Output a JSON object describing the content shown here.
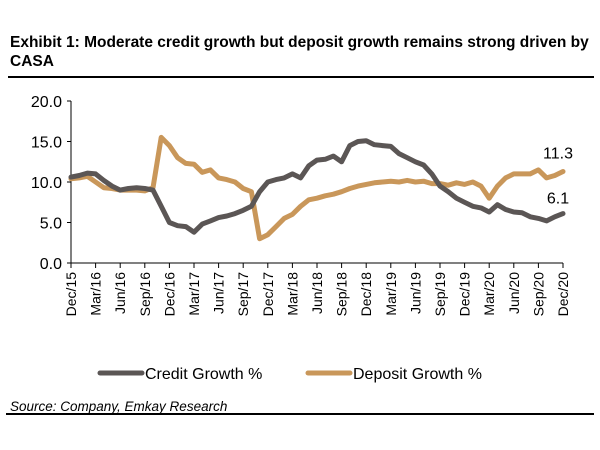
{
  "chart_data": {
    "type": "line",
    "title": "Exhibit 1: Moderate credit growth but deposit growth remains strong driven by CASA",
    "xlabel": "",
    "ylabel": "",
    "ylim": [
      0,
      20
    ],
    "yticks": [
      "0.0",
      "5.0",
      "10.0",
      "15.0",
      "20.0"
    ],
    "xtick_labels": [
      "Dec/15",
      "Mar/16",
      "Jun/16",
      "Sep/16",
      "Dec/16",
      "Mar/17",
      "Jun/17",
      "Sep/17",
      "Dec/17",
      "Mar/18",
      "Jun/18",
      "Sep/18",
      "Dec/18",
      "Mar/19",
      "Jun/19",
      "Sep/19",
      "Dec/19",
      "Mar/20",
      "Jun/20",
      "Sep/20",
      "Dec/20"
    ],
    "x_frequency": "monthly, Dec/15 to Dec/20",
    "grid": false,
    "legend_placement": "bottom",
    "series": [
      {
        "name": "Credit Growth %",
        "color": "#5b5655",
        "values": [
          10.6,
          10.8,
          11.1,
          11.0,
          10.2,
          9.5,
          9.0,
          9.2,
          9.3,
          9.2,
          9.0,
          7.0,
          5.0,
          4.6,
          4.5,
          3.8,
          4.8,
          5.2,
          5.6,
          5.8,
          6.1,
          6.5,
          7.0,
          8.8,
          10.0,
          10.3,
          10.5,
          11.0,
          10.5,
          12.0,
          12.7,
          12.8,
          13.2,
          12.5,
          14.5,
          15.0,
          15.1,
          14.6,
          14.5,
          14.4,
          13.5,
          13.0,
          12.5,
          12.1,
          11.0,
          9.5,
          8.8,
          8.0,
          7.5,
          7.0,
          6.8,
          6.3,
          7.2,
          6.6,
          6.3,
          6.2,
          5.7,
          5.5,
          5.2,
          5.7,
          6.1
        ],
        "end_label": "6.1"
      },
      {
        "name": "Deposit Growth %",
        "color": "#c9975a",
        "values": [
          10.4,
          10.5,
          10.7,
          10.0,
          9.3,
          9.2,
          9.0,
          9.0,
          9.0,
          8.9,
          9.3,
          15.5,
          14.5,
          13.0,
          12.3,
          12.2,
          11.2,
          11.5,
          10.5,
          10.3,
          10.0,
          9.2,
          8.8,
          3.0,
          3.5,
          4.5,
          5.5,
          6.0,
          7.0,
          7.8,
          8.0,
          8.3,
          8.5,
          8.8,
          9.2,
          9.5,
          9.7,
          9.9,
          10.0,
          10.1,
          10.0,
          10.2,
          10.0,
          10.1,
          9.8,
          9.8,
          9.6,
          9.9,
          9.7,
          10.0,
          9.5,
          8.0,
          9.5,
          10.5,
          11.0,
          11.0,
          11.0,
          11.5,
          10.5,
          10.8,
          11.3
        ],
        "end_label": "11.3"
      }
    ]
  },
  "source": "Source: Company, Emkay Research"
}
